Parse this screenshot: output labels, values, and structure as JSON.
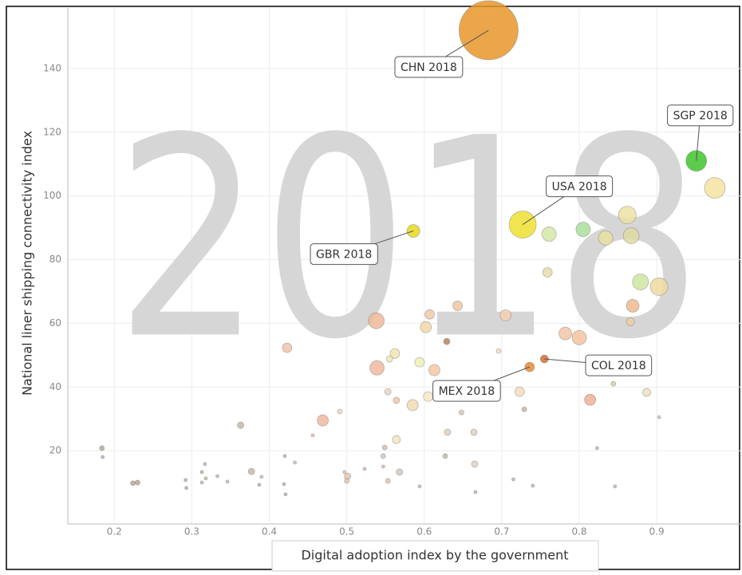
{
  "chart_data": {
    "type": "scatter",
    "watermark": "2018",
    "x_label": "Digital adoption index by the government",
    "y_label": "National liner shipping connectivity index",
    "xlim": [
      0.14,
      1.01
    ],
    "xticks": [
      0.2,
      0.3,
      0.4,
      0.5,
      0.6,
      0.7,
      0.8,
      0.9
    ],
    "ylim": [
      -3,
      159
    ],
    "yticks": [
      20,
      40,
      60,
      80,
      100,
      120,
      140
    ],
    "grid": true,
    "x": [
      0.683,
      0.951,
      0.727,
      0.586,
      0.736,
      0.755,
      0.975,
      0.761,
      0.805,
      0.834,
      0.862,
      0.867,
      0.759,
      0.879,
      0.903,
      0.869,
      0.866,
      0.782,
      0.8,
      0.705,
      0.643,
      0.607,
      0.602,
      0.538,
      0.629,
      0.696,
      0.562,
      0.555,
      0.594,
      0.539,
      0.613,
      0.423,
      0.469,
      0.491,
      0.456,
      0.363,
      0.553,
      0.564,
      0.585,
      0.605,
      0.723,
      0.729,
      0.648,
      0.65,
      0.814,
      0.844,
      0.887,
      0.903,
      0.564,
      0.549,
      0.63,
      0.664,
      0.627,
      0.665,
      0.823,
      0.568,
      0.553,
      0.594,
      0.501,
      0.5,
      0.497,
      0.523,
      0.547,
      0.547,
      0.42,
      0.433,
      0.419,
      0.421,
      0.39,
      0.377,
      0.387,
      0.333,
      0.346,
      0.318,
      0.313,
      0.313,
      0.317,
      0.292,
      0.293,
      0.23,
      0.224,
      0.184,
      0.185,
      0.666,
      0.715,
      0.74,
      0.846
    ],
    "values": [
      152,
      111,
      91,
      89,
      46.3,
      48.8,
      102.5,
      88,
      89.5,
      86.8,
      94,
      87.5,
      76,
      73,
      71.5,
      65.5,
      60.5,
      56.8,
      55.5,
      62.5,
      65.5,
      62.8,
      58.8,
      60.8,
      54.3,
      51.3,
      50.5,
      48.8,
      47.8,
      46,
      45.3,
      52.3,
      29.5,
      32.3,
      24.8,
      28,
      38.5,
      35.8,
      34.3,
      37,
      38.5,
      33,
      32,
      39.5,
      36,
      41,
      38.3,
      30.5,
      23.5,
      21,
      25.8,
      25.8,
      18.3,
      15.8,
      20.8,
      13.3,
      10.5,
      8.8,
      12,
      10.5,
      13.3,
      14.3,
      15,
      18.3,
      18.3,
      16.3,
      9.5,
      6.3,
      11.8,
      13.5,
      9.3,
      12,
      10.3,
      11.3,
      13.3,
      10,
      15.8,
      10.8,
      8.3,
      10,
      9.8,
      20.8,
      18,
      7,
      11,
      9,
      8.8
    ],
    "sizes": [
      37,
      13,
      17,
      8,
      6,
      5,
      13,
      9,
      9,
      9,
      11,
      10,
      6,
      10,
      11,
      8,
      5,
      8,
      9,
      7,
      6,
      6,
      7,
      10,
      4,
      3,
      6,
      4,
      6,
      9,
      7,
      6,
      7,
      3,
      2,
      4,
      4,
      4,
      7,
      6,
      6,
      3,
      3,
      3,
      7,
      3,
      5,
      2,
      5,
      3,
      4,
      4,
      3,
      4,
      2,
      4,
      3,
      2,
      4,
      3,
      2,
      2,
      2,
      3,
      2,
      2,
      2,
      2,
      2,
      4,
      2,
      2,
      2,
      2,
      2,
      2,
      2,
      2,
      2,
      3,
      3,
      3,
      2,
      2,
      2,
      2,
      2
    ],
    "colors": [
      "#e8962a",
      "#3ec42a",
      "#eee030",
      "#e8d820",
      "#e88a30",
      "#d07030",
      "#f5e3a0",
      "#d6e8a6",
      "#a8e09a",
      "#e8e0a0",
      "#ede2a4",
      "#dfd9a0",
      "#e6dca8",
      "#cfe6a0",
      "#eedba0",
      "#f0b890",
      "#f0d0a0",
      "#f5c4a8",
      "#f3c3a0",
      "#f4d0b0",
      "#f0c8a0",
      "#f2c8a8",
      "#f3d8a6",
      "#eeb898",
      "#b8855a",
      "#eee0c0",
      "#eee8b0",
      "#f3e6b8",
      "#eef0b8",
      "#f0b8a0",
      "#f4c8a6",
      "#f0c4a8",
      "#f0b8a0",
      "#f4d4c0",
      "#e0c4b0",
      "#c8b8a8",
      "#e8d8c8",
      "#f0c8a8",
      "#f0dcb0",
      "#f8e8c8",
      "#f4dcc0",
      "#c8b8a8",
      "#d8c8b8",
      "#e8d8c0",
      "#f0b098",
      "#d8d0a0",
      "#f0e0c0",
      "#d8c8b8",
      "#f4e8c0",
      "#d8c0b0",
      "#e0d0c0",
      "#e0d0c0",
      "#c8b8a8",
      "#e0d0c8",
      "#c8b8a8",
      "#d8c8b8",
      "#d8c8b8",
      "#d0c0b0",
      "#e8c8b0",
      "#e8c8b0",
      "#d8c8b8",
      "#d8c0b0",
      "#d8c0b0",
      "#d8c8c0",
      "#c8b8a8",
      "#d0c0b0",
      "#c8b8a8",
      "#c0b0a0",
      "#d0c0b0",
      "#c8b8a8",
      "#c0b0a0",
      "#c8b8a8",
      "#d0c0b0",
      "#c8b8a8",
      "#c0b0a0",
      "#c8b8a8",
      "#c8b8a8",
      "#c0b0a0",
      "#c0b0a0",
      "#b8a898",
      "#b8a898",
      "#b8a898",
      "#c0b0a0",
      "#c8b8a8",
      "#c8b8a8",
      "#c8b8a8",
      "#c8b8a8"
    ],
    "labels": [
      "CHN 2018",
      "SGP 2018",
      "USA 2018",
      "GBR 2018",
      "MEX 2018",
      "COL 2018",
      null,
      null,
      null,
      null,
      null,
      null,
      null,
      null,
      null,
      null,
      null,
      null,
      null,
      null,
      null,
      null,
      null,
      null,
      null,
      null,
      null,
      null,
      null,
      null,
      null,
      null,
      null,
      null,
      null,
      null,
      null,
      null,
      null,
      null,
      null,
      null,
      null,
      null,
      null,
      null,
      null,
      null,
      null,
      null,
      null,
      null,
      null,
      null,
      null,
      null,
      null,
      null,
      null,
      null,
      null,
      null,
      null,
      null,
      null,
      null,
      null,
      null,
      null,
      null,
      null,
      null,
      null,
      null,
      null,
      null,
      null,
      null,
      null,
      null,
      null,
      null,
      null,
      null,
      null,
      null,
      null
    ]
  }
}
